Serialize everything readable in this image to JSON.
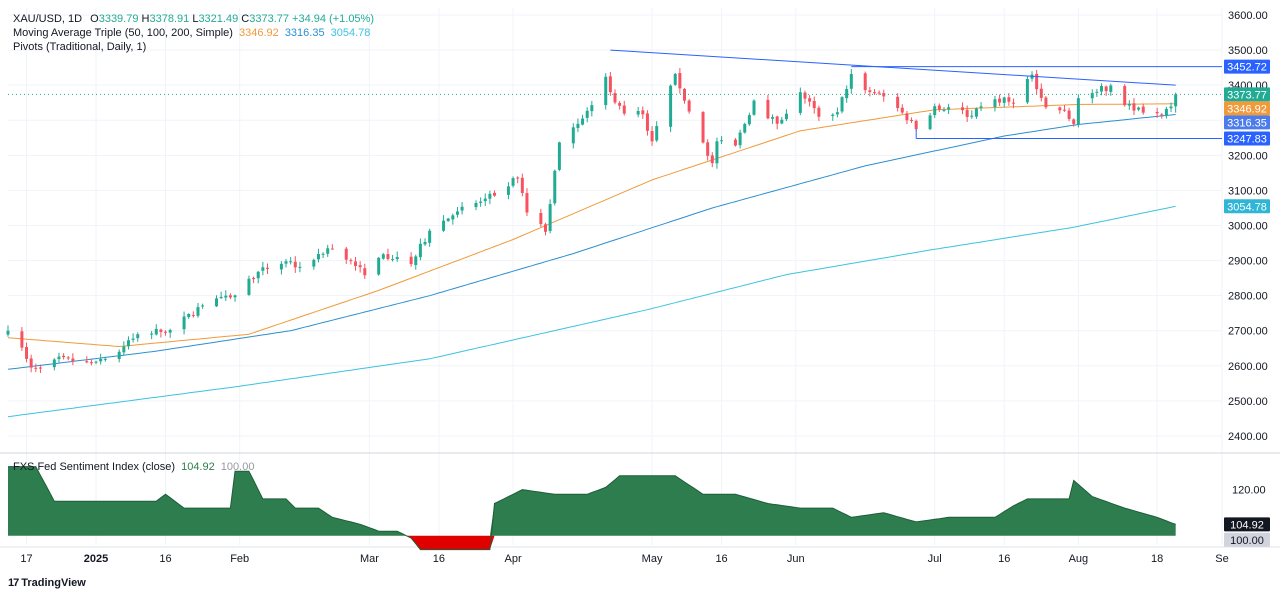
{
  "header": {
    "symbol": "XAU/USD, 1D",
    "open_label": "O",
    "open": "3339.79",
    "high_label": "H",
    "high": "3378.91",
    "low_label": "L",
    "low": "3321.49",
    "close_label": "C",
    "close": "3373.77",
    "change": "+34.94 (+1.05%)",
    "ma_title": "Moving Average Triple (50, 100, 200, Simple)",
    "ma50": "3346.92",
    "ma100": "3316.35",
    "ma200": "3054.78",
    "pivots_title": "Pivots (Traditional, Daily, 1)",
    "indicator_title": "FXS Fed Sentiment Index (close)",
    "indicator_value": "104.92",
    "indicator_base": "100.00"
  },
  "branding": {
    "logo_text": "TradingView",
    "logo_mark": "17"
  },
  "colors": {
    "up": "#22ab94",
    "down": "#f7525f",
    "ma50": "#f09a3a",
    "ma100": "#2c8fd0",
    "ma200": "#3cc3e0",
    "trendline": "#2962ff",
    "price_badge": "#22ab94",
    "fill": "#2e7d4f",
    "fill_neg": "#e00000"
  },
  "chart_data": {
    "type": "candlestick",
    "title": "XAU/USD, 1D",
    "ylim": [
      2360,
      3620
    ],
    "y_ticks": [
      2400,
      2500,
      2600,
      2700,
      2800,
      2900,
      3000,
      3100,
      3200,
      3300,
      3400,
      3500,
      3600
    ],
    "x_ticks": [
      "17",
      "2025",
      "16",
      "Feb",
      "Mar",
      "16",
      "Apr",
      "May",
      "16",
      "Jun",
      "Jul",
      "16",
      "Aug",
      "18",
      "Se"
    ],
    "x_ticks_bold": [
      "2025"
    ],
    "x_range": [
      "2024-12-13",
      "2025-09-01"
    ],
    "last_price": 3373.77,
    "price_labels": [
      {
        "value": 3452.72,
        "text": "3452.72",
        "role": "resistance"
      },
      {
        "value": 3373.77,
        "text": "3373.77",
        "role": "last"
      },
      {
        "value": 3346.92,
        "text": "3346.92",
        "role": "ma50"
      },
      {
        "value": 3316.35,
        "text": "3316.35",
        "role": "ma100"
      },
      {
        "value": 3247.83,
        "text": "3247.83",
        "role": "support"
      },
      {
        "value": 3054.78,
        "text": "3054.78",
        "role": "ma200"
      }
    ],
    "closes_anchors": [
      [
        "2024-12-13",
        2700
      ],
      [
        "2024-12-16",
        2652
      ],
      [
        "2024-12-18",
        2595
      ],
      [
        "2024-12-23",
        2618
      ],
      [
        "2024-12-30",
        2610
      ],
      [
        "2025-01-06",
        2640
      ],
      [
        "2025-01-10",
        2690
      ],
      [
        "2025-01-17",
        2702
      ],
      [
        "2025-01-24",
        2772
      ],
      [
        "2025-01-30",
        2795
      ],
      [
        "2025-02-05",
        2868
      ],
      [
        "2025-02-11",
        2898
      ],
      [
        "2025-02-14",
        2882
      ],
      [
        "2025-02-20",
        2935
      ],
      [
        "2025-02-25",
        2900
      ],
      [
        "2025-02-28",
        2858
      ],
      [
        "2025-03-04",
        2918
      ],
      [
        "2025-03-07",
        2910
      ],
      [
        "2025-03-10",
        2890
      ],
      [
        "2025-03-14",
        2985
      ],
      [
        "2025-03-20",
        3040
      ],
      [
        "2025-03-28",
        3085
      ],
      [
        "2025-04-02",
        3135
      ],
      [
        "2025-04-04",
        3037
      ],
      [
        "2025-04-08",
        2982
      ],
      [
        "2025-04-11",
        3237
      ],
      [
        "2025-04-17",
        3327
      ],
      [
        "2025-04-21",
        3424
      ],
      [
        "2025-04-22",
        3380
      ],
      [
        "2025-04-25",
        3319
      ],
      [
        "2025-04-29",
        3317
      ],
      [
        "2025-05-01",
        3240
      ],
      [
        "2025-05-06",
        3432
      ],
      [
        "2025-05-09",
        3325
      ],
      [
        "2025-05-14",
        3178
      ],
      [
        "2025-05-15",
        3240
      ],
      [
        "2025-05-19",
        3228
      ],
      [
        "2025-05-23",
        3356
      ],
      [
        "2025-05-28",
        3290
      ],
      [
        "2025-06-02",
        3380
      ],
      [
        "2025-06-06",
        3310
      ],
      [
        "2025-06-10",
        3323
      ],
      [
        "2025-06-13",
        3432
      ],
      [
        "2025-06-16",
        3386
      ],
      [
        "2025-06-20",
        3368
      ],
      [
        "2025-06-24",
        3322
      ],
      [
        "2025-06-27",
        3275
      ],
      [
        "2025-07-01",
        3340
      ],
      [
        "2025-07-04",
        3337
      ],
      [
        "2025-07-09",
        3313
      ],
      [
        "2025-07-14",
        3360
      ],
      [
        "2025-07-18",
        3350
      ],
      [
        "2025-07-22",
        3430
      ],
      [
        "2025-07-25",
        3337
      ],
      [
        "2025-07-29",
        3327
      ],
      [
        "2025-07-31",
        3289
      ],
      [
        "2025-08-01",
        3363
      ],
      [
        "2025-08-05",
        3381
      ],
      [
        "2025-08-08",
        3399
      ],
      [
        "2025-08-11",
        3343
      ],
      [
        "2025-08-14",
        3336
      ],
      [
        "2025-08-19",
        3315
      ],
      [
        "2025-08-21",
        3339
      ],
      [
        "2025-08-22",
        3373.77
      ]
    ],
    "ma_series": [
      {
        "name": "MA 50",
        "period": 50,
        "points": [
          [
            "2024-12-13",
            2680
          ],
          [
            "2025-01-06",
            2655
          ],
          [
            "2025-02-03",
            2690
          ],
          [
            "2025-03-03",
            2815
          ],
          [
            "2025-04-01",
            2960
          ],
          [
            "2025-05-01",
            3130
          ],
          [
            "2025-06-02",
            3270
          ],
          [
            "2025-07-01",
            3330
          ],
          [
            "2025-08-01",
            3345
          ],
          [
            "2025-08-22",
            3346.92
          ]
        ]
      },
      {
        "name": "MA 100",
        "period": 100,
        "points": [
          [
            "2024-12-13",
            2590
          ],
          [
            "2025-01-13",
            2640
          ],
          [
            "2025-02-12",
            2700
          ],
          [
            "2025-03-14",
            2800
          ],
          [
            "2025-04-14",
            2920
          ],
          [
            "2025-05-14",
            3050
          ],
          [
            "2025-06-16",
            3170
          ],
          [
            "2025-07-16",
            3255
          ],
          [
            "2025-08-01",
            3288
          ],
          [
            "2025-08-22",
            3316.35
          ]
        ]
      },
      {
        "name": "MA 200",
        "period": 200,
        "points": [
          [
            "2024-12-13",
            2455
          ],
          [
            "2025-01-31",
            2540
          ],
          [
            "2025-03-14",
            2620
          ],
          [
            "2025-04-30",
            2760
          ],
          [
            "2025-05-30",
            2860
          ],
          [
            "2025-06-30",
            2930
          ],
          [
            "2025-07-31",
            2995
          ],
          [
            "2025-08-22",
            3054.78
          ]
        ]
      }
    ],
    "trendlines": [
      {
        "name": "descending-resistance",
        "points": [
          [
            "2025-04-22",
            3500
          ],
          [
            "2025-08-22",
            3400
          ]
        ]
      },
      {
        "name": "resistance-horizontal",
        "points": [
          [
            "2025-06-13",
            3452.72
          ],
          [
            "2025-09-01",
            3452.72
          ]
        ]
      },
      {
        "name": "support-horizontal",
        "points": [
          [
            "2025-06-27",
            3247.83
          ],
          [
            "2025-09-01",
            3247.83
          ]
        ]
      }
    ],
    "indicator": {
      "name": "FXS Fed Sentiment Index (close)",
      "baseline": 100,
      "ylim": [
        96,
        132
      ],
      "y_ticks": [
        100,
        120
      ],
      "last": 104.92,
      "points": [
        [
          "2024-12-13",
          130
        ],
        [
          "2024-12-19",
          130
        ],
        [
          "2024-12-23",
          115
        ],
        [
          "2024-12-31",
          115
        ],
        [
          "2025-01-06",
          115
        ],
        [
          "2025-01-14",
          115
        ],
        [
          "2025-01-16",
          118
        ],
        [
          "2025-01-20",
          112
        ],
        [
          "2025-01-27",
          112
        ],
        [
          "2025-01-30",
          112
        ],
        [
          "2025-01-31",
          128
        ],
        [
          "2025-02-03",
          128
        ],
        [
          "2025-02-06",
          116
        ],
        [
          "2025-02-11",
          116
        ],
        [
          "2025-02-13",
          112
        ],
        [
          "2025-02-18",
          112
        ],
        [
          "2025-02-21",
          108
        ],
        [
          "2025-02-27",
          105
        ],
        [
          "2025-03-03",
          102
        ],
        [
          "2025-03-07",
          102
        ],
        [
          "2025-03-10",
          99
        ],
        [
          "2025-03-12",
          94
        ],
        [
          "2025-03-27",
          94
        ],
        [
          "2025-03-28",
          114
        ],
        [
          "2025-04-03",
          120
        ],
        [
          "2025-04-10",
          118
        ],
        [
          "2025-04-17",
          118
        ],
        [
          "2025-04-21",
          121
        ],
        [
          "2025-04-24",
          126
        ],
        [
          "2025-05-06",
          126
        ],
        [
          "2025-05-12",
          118
        ],
        [
          "2025-05-19",
          118
        ],
        [
          "2025-05-26",
          114
        ],
        [
          "2025-06-02",
          112
        ],
        [
          "2025-06-09",
          112
        ],
        [
          "2025-06-13",
          108
        ],
        [
          "2025-06-20",
          110
        ],
        [
          "2025-06-27",
          106
        ],
        [
          "2025-07-04",
          108
        ],
        [
          "2025-07-14",
          108
        ],
        [
          "2025-07-18",
          113
        ],
        [
          "2025-07-21",
          116
        ],
        [
          "2025-07-30",
          116
        ],
        [
          "2025-07-31",
          124
        ],
        [
          "2025-08-04",
          117
        ],
        [
          "2025-08-11",
          112
        ],
        [
          "2025-08-18",
          108
        ],
        [
          "2025-08-22",
          104.92
        ]
      ]
    }
  }
}
